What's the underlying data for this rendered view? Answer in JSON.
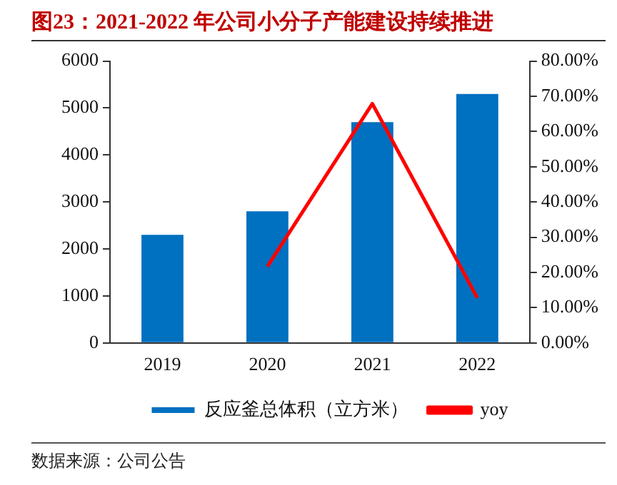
{
  "chart_data": {
    "type": "bar",
    "title": "图23：2021-2022 年公司小分子产能建设持续推进",
    "categories": [
      "2019",
      "2020",
      "2021",
      "2022"
    ],
    "series": [
      {
        "name": "反应釜总体积（立方米）",
        "color": "#0070c0",
        "values": [
          2300,
          2800,
          4700,
          5300
        ]
      },
      {
        "name": "yoy",
        "type": "line",
        "axis": "y2",
        "color": "#ff0000",
        "values": [
          null,
          21.7,
          67.9,
          12.8
        ]
      }
    ],
    "ylim": [
      0,
      6000
    ],
    "yticks": [
      0,
      1000,
      2000,
      3000,
      4000,
      5000,
      6000
    ],
    "y2lim": [
      0,
      80
    ],
    "y2ticks": [
      {
        "value": 0,
        "label": "0.00%"
      },
      {
        "value": 10,
        "label": "10.00%"
      },
      {
        "value": 20,
        "label": "20.00%"
      },
      {
        "value": 30,
        "label": "30.00%"
      },
      {
        "value": 40,
        "label": "40.00%"
      },
      {
        "value": 50,
        "label": "50.00%"
      },
      {
        "value": 60,
        "label": "60.00%"
      },
      {
        "value": 70,
        "label": "70.00%"
      },
      {
        "value": 80,
        "label": "80.00%"
      }
    ],
    "grid": false,
    "legend": "bottom",
    "marker": "none",
    "annotations": [
      "数据来源：公司公告"
    ]
  }
}
